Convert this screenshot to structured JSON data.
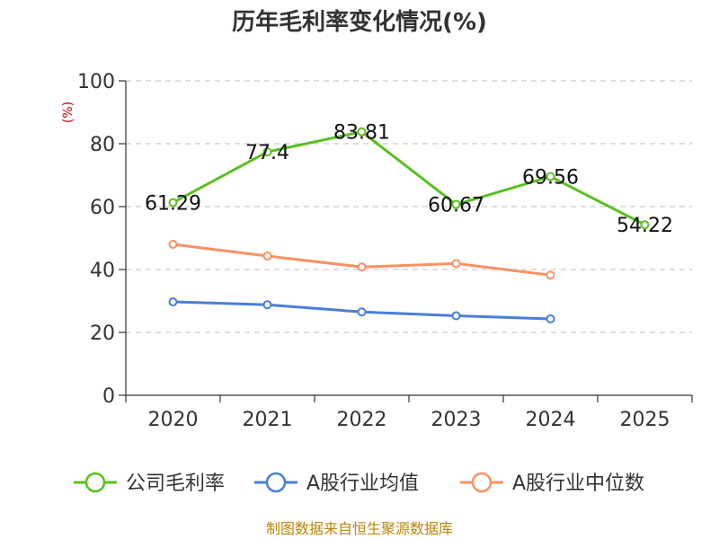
{
  "chart_data": {
    "type": "line",
    "title": "历年毛利率变化情况(%)",
    "ylabel": "(%)",
    "xlabel": "",
    "categories": [
      "2020",
      "2021",
      "2022",
      "2023",
      "2024",
      "2025"
    ],
    "ylim": [
      0,
      100
    ],
    "yticks": [
      0,
      20,
      40,
      60,
      80,
      100
    ],
    "grid": true,
    "legend_position": "bottom",
    "series": [
      {
        "name": "公司毛利率",
        "color": "#5bbf21",
        "values": [
          61.29,
          77.4,
          83.81,
          60.67,
          69.56,
          54.22
        ],
        "labels": [
          "61.29",
          "77.4",
          "83.81",
          "60.67",
          "69.56",
          "54.22"
        ]
      },
      {
        "name": "A股行业均值",
        "color": "#4a7fd8",
        "values": [
          29.7,
          28.8,
          26.5,
          25.3,
          24.3,
          null
        ],
        "labels": []
      },
      {
        "name": "A股行业中位数",
        "color": "#f79263",
        "values": [
          48.0,
          44.3,
          40.8,
          41.9,
          38.2,
          null
        ],
        "labels": []
      }
    ],
    "source": "制图数据来自恒生聚源数据库"
  }
}
